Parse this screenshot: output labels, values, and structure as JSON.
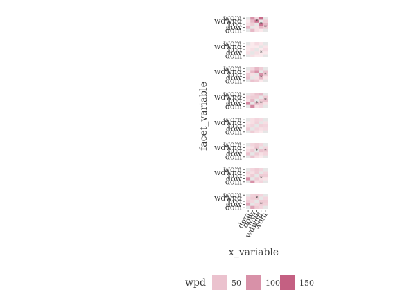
{
  "chart_data": {
    "type": "heatmap",
    "title": "",
    "xlabel": "x_variable",
    "ylabel": "facet_variable",
    "x_categories": [
      "dom",
      "dow",
      "hod",
      "wdwnd",
      "wom"
    ],
    "y_categories": [
      "dom",
      "dow",
      "hod",
      "wdwnd",
      "wom"
    ],
    "legend": {
      "title": "wpd",
      "position": "bottom",
      "breaks": [
        50,
        100,
        150
      ],
      "low_color": "#fbe9ec",
      "high_color": "#c0567a"
    },
    "panels": [
      {
        "cells": [
          [
            0,
            60,
            20,
            10,
            0
          ],
          [
            60,
            0,
            20,
            60,
            40
          ],
          [
            20,
            40,
            0,
            130,
            60
          ],
          [
            10,
            60,
            130,
            0,
            40
          ],
          [
            0,
            100,
            30,
            140,
            0
          ]
        ],
        "stars": [
          [
            1,
            4
          ],
          [
            2,
            3
          ],
          [
            3,
            2
          ]
        ]
      },
      {
        "cells": [
          [
            0,
            20,
            10,
            5,
            0
          ],
          [
            20,
            0,
            20,
            10,
            5
          ],
          [
            10,
            20,
            0,
            10,
            25
          ],
          [
            5,
            10,
            10,
            0,
            15
          ],
          [
            0,
            5,
            25,
            15,
            0
          ]
        ],
        "stars": [
          [
            1,
            3
          ]
        ]
      },
      {
        "cells": [
          [
            0,
            50,
            40,
            10,
            0
          ],
          [
            50,
            0,
            20,
            60,
            15
          ],
          [
            40,
            20,
            0,
            100,
            40
          ],
          [
            10,
            60,
            100,
            0,
            50
          ],
          [
            0,
            30,
            60,
            40,
            0
          ]
        ],
        "stars": [
          [
            1,
            3
          ],
          [
            2,
            4
          ]
        ]
      },
      {
        "cells": [
          [
            0,
            110,
            20,
            30,
            0
          ],
          [
            110,
            0,
            60,
            40,
            20
          ],
          [
            20,
            60,
            0,
            40,
            50
          ],
          [
            30,
            40,
            40,
            0,
            40
          ],
          [
            0,
            30,
            50,
            60,
            0
          ]
        ],
        "stars": [
          [
            1,
            2
          ],
          [
            1,
            3
          ],
          [
            2,
            4
          ]
        ]
      },
      {
        "cells": [
          [
            0,
            40,
            20,
            10,
            0
          ],
          [
            40,
            0,
            30,
            20,
            25
          ],
          [
            20,
            30,
            0,
            35,
            30
          ],
          [
            10,
            20,
            35,
            0,
            20
          ],
          [
            0,
            20,
            30,
            25,
            0
          ]
        ],
        "stars": []
      },
      {
        "cells": [
          [
            0,
            50,
            20,
            10,
            0
          ],
          [
            50,
            0,
            40,
            20,
            30
          ],
          [
            20,
            40,
            0,
            50,
            40
          ],
          [
            10,
            20,
            50,
            0,
            30
          ],
          [
            0,
            30,
            40,
            30,
            0
          ]
        ],
        "stars": [
          [
            2,
            2
          ],
          [
            2,
            4
          ]
        ]
      },
      {
        "cells": [
          [
            0,
            100,
            20,
            30,
            0
          ],
          [
            100,
            0,
            40,
            20,
            15
          ],
          [
            20,
            40,
            0,
            40,
            40
          ],
          [
            30,
            20,
            40,
            0,
            30
          ],
          [
            0,
            30,
            40,
            30,
            0
          ]
        ],
        "stars": [
          [
            1,
            3
          ]
        ]
      },
      {
        "cells": [
          [
            0,
            80,
            40,
            30,
            0
          ],
          [
            80,
            0,
            30,
            40,
            35
          ],
          [
            40,
            30,
            0,
            40,
            40
          ],
          [
            30,
            40,
            40,
            0,
            30
          ],
          [
            0,
            35,
            40,
            30,
            0
          ]
        ],
        "stars": [
          [
            1,
            3
          ],
          [
            3,
            2
          ]
        ]
      }
    ]
  }
}
